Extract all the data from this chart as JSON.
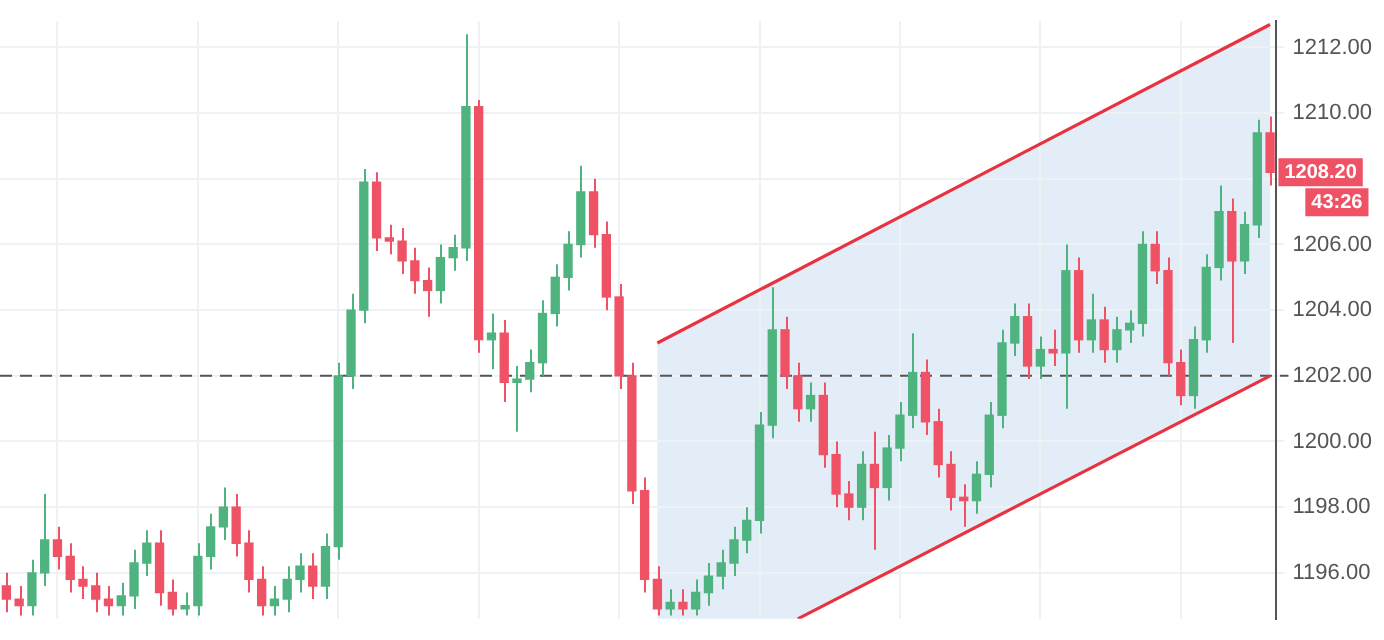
{
  "chart_data": {
    "type": "candlestick",
    "categories": [
      null,
      null,
      null,
      null,
      null,
      null,
      null,
      null,
      null,
      null,
      null,
      null,
      null,
      null,
      null,
      null,
      null,
      null,
      null,
      null,
      null,
      null,
      null,
      null,
      null,
      null,
      null,
      null,
      null,
      null,
      null,
      null,
      null,
      null,
      null,
      null,
      null,
      null,
      null,
      null,
      null,
      null,
      null,
      null,
      null,
      null,
      null,
      null,
      null,
      null,
      null,
      null,
      null,
      null,
      null,
      null,
      null,
      null,
      null,
      null,
      null,
      null,
      null,
      null,
      null,
      null,
      null,
      null,
      null,
      null,
      null,
      null,
      null,
      null,
      null,
      null,
      null,
      null,
      null,
      null,
      null,
      null,
      null,
      null,
      null,
      null,
      null,
      null,
      null,
      null,
      null,
      null,
      null,
      null,
      null,
      null,
      null,
      null,
      null,
      null
    ],
    "ohlc": [
      [
        1195.6,
        1196.0,
        1194.8,
        1195.2
      ],
      [
        1195.2,
        1195.6,
        1194.7,
        1195.0
      ],
      [
        1195.0,
        1196.4,
        1194.7,
        1196.0
      ],
      [
        1196.0,
        1198.4,
        1195.6,
        1197.0
      ],
      [
        1197.0,
        1197.4,
        1196.1,
        1196.5
      ],
      [
        1196.5,
        1196.9,
        1195.4,
        1195.8
      ],
      [
        1195.8,
        1196.2,
        1195.2,
        1195.6
      ],
      [
        1195.6,
        1196.0,
        1194.8,
        1195.2
      ],
      [
        1195.2,
        1195.6,
        1194.7,
        1195.0
      ],
      [
        1195.0,
        1195.7,
        1194.7,
        1195.3
      ],
      [
        1195.3,
        1196.7,
        1194.9,
        1196.3
      ],
      [
        1196.3,
        1197.3,
        1195.9,
        1196.9
      ],
      [
        1196.9,
        1197.3,
        1195.0,
        1195.4
      ],
      [
        1195.4,
        1195.8,
        1194.7,
        1194.9
      ],
      [
        1194.9,
        1195.4,
        1194.7,
        1195.0
      ],
      [
        1195.0,
        1196.9,
        1194.7,
        1196.5
      ],
      [
        1196.5,
        1197.8,
        1196.1,
        1197.4
      ],
      [
        1197.4,
        1198.6,
        1197.0,
        1198.0
      ],
      [
        1198.0,
        1198.4,
        1196.5,
        1196.9
      ],
      [
        1196.9,
        1197.3,
        1195.4,
        1195.8
      ],
      [
        1195.8,
        1196.2,
        1194.7,
        1195.0
      ],
      [
        1195.0,
        1195.6,
        1194.7,
        1195.2
      ],
      [
        1195.2,
        1196.2,
        1194.8,
        1195.8
      ],
      [
        1195.8,
        1196.6,
        1195.4,
        1196.2
      ],
      [
        1196.2,
        1196.6,
        1195.2,
        1195.6
      ],
      [
        1195.6,
        1197.2,
        1195.2,
        1196.8
      ],
      [
        1196.8,
        1202.4,
        1196.4,
        1202.0
      ],
      [
        1202.0,
        1204.5,
        1201.6,
        1204.0
      ],
      [
        1204.0,
        1208.3,
        1203.6,
        1207.9
      ],
      [
        1207.9,
        1208.2,
        1205.8,
        1206.2
      ],
      [
        1206.2,
        1206.6,
        1205.7,
        1206.1
      ],
      [
        1206.1,
        1206.5,
        1205.1,
        1205.5
      ],
      [
        1205.5,
        1205.9,
        1204.5,
        1204.9
      ],
      [
        1204.9,
        1205.3,
        1203.8,
        1204.6
      ],
      [
        1204.6,
        1206.0,
        1204.2,
        1205.6
      ],
      [
        1205.6,
        1206.3,
        1205.2,
        1205.9
      ],
      [
        1205.9,
        1212.4,
        1205.5,
        1210.2
      ],
      [
        1210.2,
        1210.4,
        1202.7,
        1203.1
      ],
      [
        1203.1,
        1203.9,
        1202.2,
        1203.3
      ],
      [
        1203.3,
        1203.7,
        1201.2,
        1201.8
      ],
      [
        1201.8,
        1202.3,
        1200.3,
        1201.9
      ],
      [
        1201.9,
        1202.8,
        1201.5,
        1202.4
      ],
      [
        1202.4,
        1204.3,
        1202.0,
        1203.9
      ],
      [
        1203.9,
        1205.4,
        1203.5,
        1205.0
      ],
      [
        1205.0,
        1206.4,
        1204.6,
        1206.0
      ],
      [
        1206.0,
        1208.4,
        1205.6,
        1207.6
      ],
      [
        1207.6,
        1208.0,
        1205.9,
        1206.3
      ],
      [
        1206.3,
        1206.7,
        1204.0,
        1204.4
      ],
      [
        1204.4,
        1204.8,
        1201.6,
        1202.0
      ],
      [
        1202.0,
        1202.4,
        1198.1,
        1198.5
      ],
      [
        1198.5,
        1198.9,
        1195.4,
        1195.8
      ],
      [
        1195.8,
        1196.2,
        1194.7,
        1194.9
      ],
      [
        1194.9,
        1195.5,
        1194.7,
        1195.1
      ],
      [
        1195.1,
        1195.5,
        1194.7,
        1194.9
      ],
      [
        1194.9,
        1195.8,
        1194.7,
        1195.4
      ],
      [
        1195.4,
        1196.3,
        1195.0,
        1195.9
      ],
      [
        1195.9,
        1196.7,
        1195.5,
        1196.3
      ],
      [
        1196.3,
        1197.4,
        1195.9,
        1197.0
      ],
      [
        1197.0,
        1198.0,
        1196.6,
        1197.6
      ],
      [
        1197.6,
        1200.9,
        1197.2,
        1200.5
      ],
      [
        1200.5,
        1204.7,
        1200.1,
        1203.4
      ],
      [
        1203.4,
        1203.8,
        1201.6,
        1202.0
      ],
      [
        1202.0,
        1202.4,
        1200.6,
        1201.0
      ],
      [
        1201.0,
        1201.8,
        1200.6,
        1201.4
      ],
      [
        1201.4,
        1201.8,
        1199.2,
        1199.6
      ],
      [
        1199.6,
        1200.0,
        1198.0,
        1198.4
      ],
      [
        1198.4,
        1198.8,
        1197.6,
        1198.0
      ],
      [
        1198.0,
        1199.7,
        1197.6,
        1199.3
      ],
      [
        1199.3,
        1200.3,
        1196.7,
        1198.6
      ],
      [
        1198.6,
        1200.2,
        1198.2,
        1199.8
      ],
      [
        1199.8,
        1201.2,
        1199.4,
        1200.8
      ],
      [
        1200.8,
        1203.3,
        1200.4,
        1202.1
      ],
      [
        1202.1,
        1202.5,
        1200.2,
        1200.6
      ],
      [
        1200.6,
        1201.0,
        1198.9,
        1199.3
      ],
      [
        1199.3,
        1199.7,
        1197.9,
        1198.3
      ],
      [
        1198.3,
        1198.7,
        1197.4,
        1198.2
      ],
      [
        1198.2,
        1199.4,
        1197.8,
        1199.0
      ],
      [
        1199.0,
        1201.2,
        1198.6,
        1200.8
      ],
      [
        1200.8,
        1203.4,
        1200.4,
        1203.0
      ],
      [
        1203.0,
        1204.2,
        1202.6,
        1203.8
      ],
      [
        1203.8,
        1204.2,
        1201.9,
        1202.3
      ],
      [
        1202.3,
        1203.2,
        1201.9,
        1202.8
      ],
      [
        1202.8,
        1203.4,
        1202.3,
        1202.7
      ],
      [
        1202.7,
        1206.0,
        1201.0,
        1205.2
      ],
      [
        1205.2,
        1205.6,
        1202.7,
        1203.1
      ],
      [
        1203.1,
        1204.5,
        1202.7,
        1203.7
      ],
      [
        1203.7,
        1204.1,
        1202.4,
        1202.8
      ],
      [
        1202.8,
        1203.8,
        1202.4,
        1203.4
      ],
      [
        1203.4,
        1204.0,
        1203.0,
        1203.6
      ],
      [
        1203.6,
        1206.4,
        1203.2,
        1206.0
      ],
      [
        1206.0,
        1206.4,
        1204.8,
        1205.2
      ],
      [
        1205.2,
        1205.6,
        1202.0,
        1202.4
      ],
      [
        1202.4,
        1202.8,
        1201.1,
        1201.4
      ],
      [
        1201.4,
        1203.5,
        1201.0,
        1203.1
      ],
      [
        1203.1,
        1205.7,
        1202.7,
        1205.3
      ],
      [
        1205.3,
        1207.8,
        1204.9,
        1207.0
      ],
      [
        1207.0,
        1207.4,
        1203.0,
        1205.5
      ],
      [
        1205.5,
        1207.0,
        1205.1,
        1206.6
      ],
      [
        1206.6,
        1209.8,
        1206.2,
        1209.4
      ],
      [
        1209.4,
        1209.9,
        1207.8,
        1208.2
      ]
    ],
    "colors": [
      "#ef5264",
      "#ef5264",
      "#4fb37f",
      "#4fb37f",
      "#ef5264",
      "#ef5264",
      "#ef5264",
      "#ef5264",
      "#ef5264",
      "#4fb37f",
      "#4fb37f",
      "#4fb37f",
      "#ef5264",
      "#ef5264",
      "#4fb37f",
      "#4fb37f",
      "#4fb37f",
      "#4fb37f",
      "#ef5264",
      "#ef5264",
      "#ef5264",
      "#4fb37f",
      "#4fb37f",
      "#4fb37f",
      "#ef5264",
      "#4fb37f",
      "#4fb37f",
      "#4fb37f",
      "#4fb37f",
      "#ef5264",
      "#ef5264",
      "#ef5264",
      "#ef5264",
      "#ef5264",
      "#4fb37f",
      "#4fb37f",
      "#4fb37f",
      "#ef5264",
      "#4fb37f",
      "#ef5264",
      "#4fb37f",
      "#4fb37f",
      "#4fb37f",
      "#4fb37f",
      "#4fb37f",
      "#4fb37f",
      "#ef5264",
      "#ef5264",
      "#ef5264",
      "#ef5264",
      "#ef5264",
      "#ef5264",
      "#4fb37f",
      "#ef5264",
      "#4fb37f",
      "#4fb37f",
      "#4fb37f",
      "#4fb37f",
      "#4fb37f",
      "#4fb37f",
      "#4fb37f",
      "#ef5264",
      "#ef5264",
      "#4fb37f",
      "#ef5264",
      "#ef5264",
      "#ef5264",
      "#4fb37f",
      "#ef5264",
      "#4fb37f",
      "#4fb37f",
      "#4fb37f",
      "#ef5264",
      "#ef5264",
      "#ef5264",
      "#ef5264",
      "#4fb37f",
      "#4fb37f",
      "#4fb37f",
      "#4fb37f",
      "#ef5264",
      "#4fb37f",
      "#ef5264",
      "#4fb37f",
      "#ef5264",
      "#4fb37f",
      "#ef5264",
      "#4fb37f",
      "#4fb37f",
      "#4fb37f",
      "#ef5264",
      "#ef5264",
      "#ef5264",
      "#4fb37f",
      "#4fb37f",
      "#4fb37f",
      "#ef5264",
      "#4fb37f",
      "#4fb37f",
      "#ef5264"
    ],
    "series": [
      {
        "type": "line",
        "color": "#e8323f",
        "values": [
          null,
          null,
          null,
          null,
          null,
          null,
          null,
          null,
          null,
          null,
          null,
          null,
          null,
          null,
          null,
          null,
          null,
          null,
          null,
          null,
          null,
          null,
          null,
          null,
          null,
          null,
          null,
          null,
          null,
          null,
          null,
          null,
          null,
          null,
          null,
          null,
          null,
          null,
          null,
          null,
          null,
          null,
          null,
          null,
          null,
          null,
          null,
          null,
          null,
          null,
          null,
          1203.0,
          null,
          null,
          null,
          null,
          null,
          null,
          null,
          null,
          null,
          null,
          null,
          null,
          null,
          null,
          null,
          null,
          null,
          null,
          null,
          null,
          null,
          null,
          null,
          null,
          null,
          null,
          null,
          null,
          null,
          null,
          null,
          null,
          null,
          null,
          null,
          null,
          null,
          null,
          null,
          null,
          null,
          null,
          null,
          null,
          null,
          null,
          null,
          1212.7
        ]
      },
      {
        "type": "line",
        "color": "#e8323f",
        "values": [
          null,
          null,
          null,
          null,
          null,
          null,
          null,
          null,
          null,
          null,
          null,
          null,
          null,
          null,
          null,
          null,
          null,
          null,
          null,
          null,
          null,
          null,
          null,
          null,
          null,
          null,
          null,
          null,
          null,
          null,
          null,
          null,
          null,
          null,
          null,
          null,
          null,
          null,
          null,
          null,
          null,
          null,
          null,
          null,
          null,
          null,
          null,
          null,
          null,
          null,
          null,
          null,
          null,
          null,
          null,
          null,
          null,
          null,
          null,
          null,
          null,
          null,
          1194.6,
          null,
          null,
          null,
          null,
          null,
          null,
          null,
          null,
          null,
          null,
          null,
          null,
          null,
          null,
          null,
          null,
          null,
          null,
          null,
          null,
          null,
          null,
          null,
          null,
          null,
          null,
          null,
          null,
          null,
          null,
          null,
          null,
          null,
          null,
          null,
          null,
          1202.0
        ]
      }
    ],
    "ylim": [
      1194.6,
      1212.8
    ],
    "yticks": [
      {
        "value": 1196,
        "label": "1196.00"
      },
      {
        "value": 1198,
        "label": "1198.00"
      },
      {
        "value": 1200,
        "label": "1200.00"
      },
      {
        "value": 1202,
        "label": "1202.00"
      },
      {
        "value": 1204,
        "label": "1204.00"
      },
      {
        "value": 1206,
        "label": "1206.00"
      },
      {
        "value": 1208,
        "label": null
      },
      {
        "value": 1210,
        "label": "1210.00"
      },
      {
        "value": 1212,
        "label": "1212.00"
      }
    ],
    "ref_lines": [
      {
        "axis": "y",
        "value": 1202,
        "color": "#555555",
        "line_style": "dashed"
      }
    ],
    "annotations": [
      {
        "text": "1208.20",
        "y": 1208.2
      },
      "43:26"
    ],
    "grid": true,
    "tick_labels": "y",
    "legend": false
  }
}
